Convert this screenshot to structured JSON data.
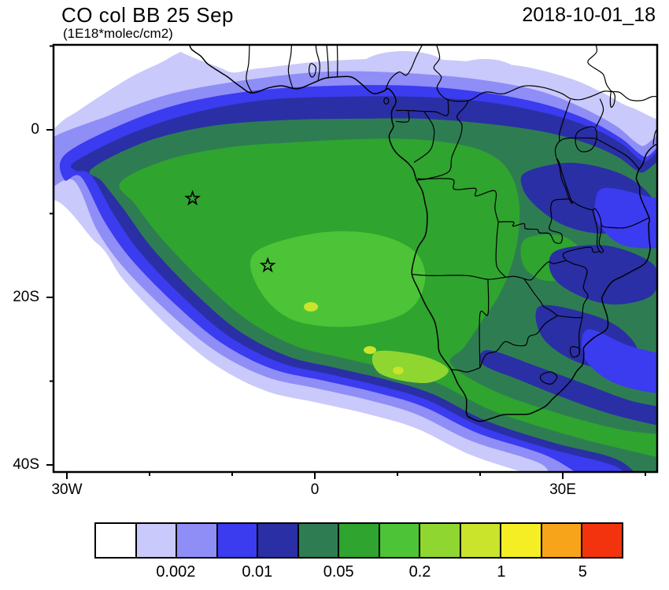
{
  "header": {
    "title": "CO col BB 25 Sep",
    "subtitle": "(1E18*molec/cm2)",
    "timestamp": "2018-10-01_18"
  },
  "axes": {
    "y_tick_labels": [
      "0",
      "20S",
      "40S"
    ],
    "x_tick_labels": [
      "30W",
      "0",
      "30E"
    ]
  },
  "colorbar": {
    "tick_labels": [
      "0.002",
      "0.01",
      "0.05",
      "0.2",
      "1",
      "5"
    ],
    "tick_boundary_indices": [
      2,
      4,
      6,
      8,
      10,
      12
    ],
    "n_cells": 13
  },
  "chart_data": {
    "type": "heatmap",
    "title": "CO col BB 25 Sep",
    "units": "1E18*molec/cm2",
    "valid_time": "2018-10-01_18",
    "x_axis": {
      "tick_labels": [
        "30W",
        "0",
        "30E"
      ],
      "tick_values_deg": [
        -30,
        0,
        30
      ],
      "range_deg": [
        -31.6,
        41.4
      ]
    },
    "y_axis": {
      "tick_labels": [
        "0",
        "20S",
        "40S"
      ],
      "tick_values_deg": [
        0,
        -20,
        -40
      ],
      "range_deg": [
        10.1,
        -40.8
      ]
    },
    "contour_levels": [
      0.001,
      0.002,
      0.005,
      0.01,
      0.02,
      0.05,
      0.1,
      0.2,
      0.5,
      1,
      2,
      5
    ],
    "labeled_levels": [
      0.002,
      0.01,
      0.05,
      0.2,
      1,
      5
    ],
    "palette": [
      "#ffffff",
      "#c9c9fb",
      "#8f8df6",
      "#3b3bf0",
      "#2a2fa5",
      "#2e7d52",
      "#2fa42f",
      "#4dc437",
      "#8fd630",
      "#c9e42b",
      "#f6ee25",
      "#f8a41a",
      "#f3330d"
    ],
    "line_color": "#000000",
    "markers": [
      {
        "type": "star",
        "lon": -14.8,
        "lat": -8.2
      },
      {
        "type": "star",
        "lon": -5.7,
        "lat": -16.2
      }
    ]
  }
}
